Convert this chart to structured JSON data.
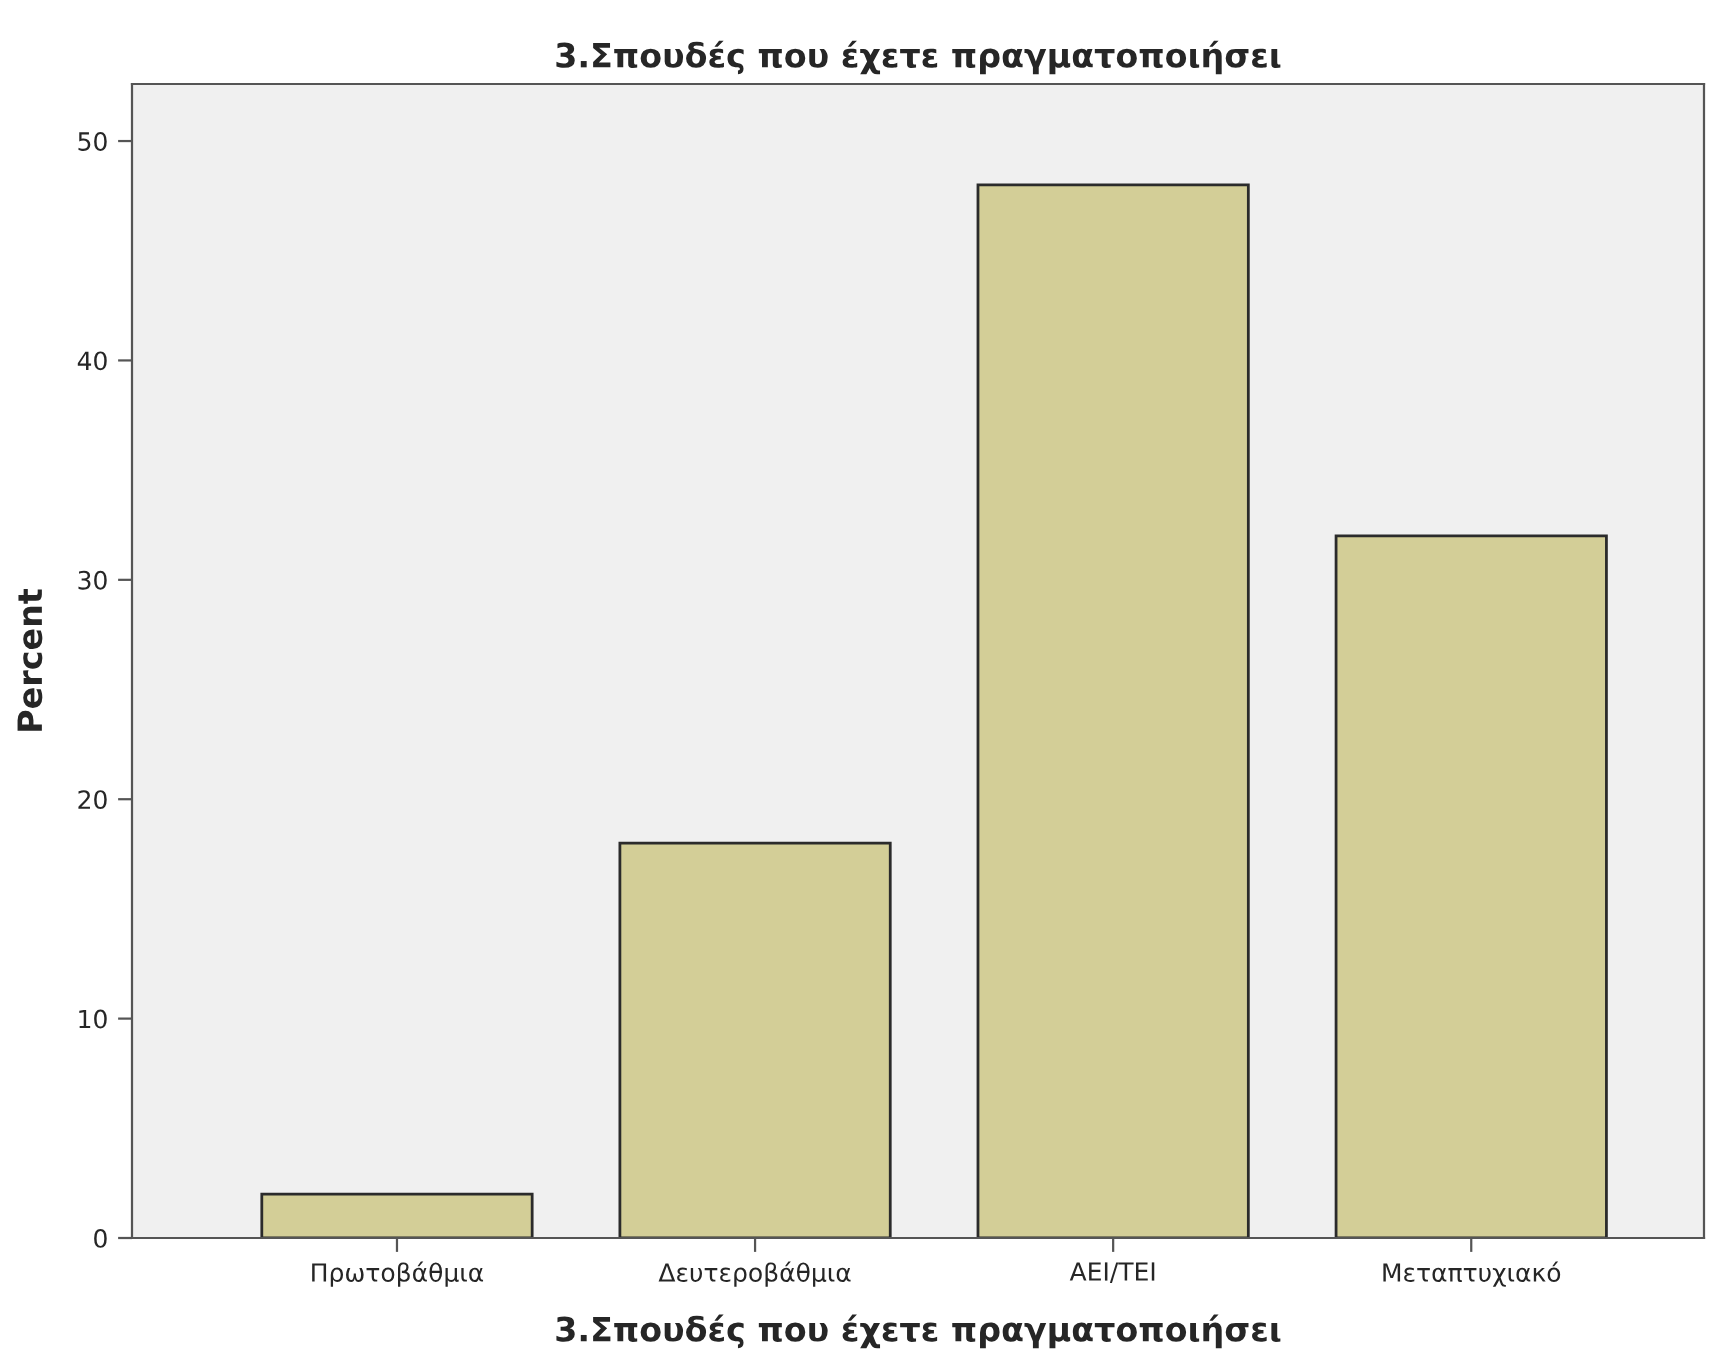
{
  "chart_data": {
    "type": "bar",
    "title": "3.Σπουδές που έχετε πραγματοποιήσει",
    "xlabel": "3.Σπουδές που έχετε πραγματοποιήσει",
    "ylabel": "Percent",
    "categories": [
      "Πρωτοβάθμια",
      "Δευτεροβάθμια",
      "ΑΕΙ/ΤΕΙ",
      "Μεταπτυχιακό"
    ],
    "values": [
      2,
      18,
      48,
      32
    ],
    "color": "#d3ce97",
    "ylim": [
      0,
      52.6
    ],
    "yticks": [
      0,
      10,
      20,
      30,
      40,
      50
    ],
    "grid": false,
    "legend": false
  }
}
